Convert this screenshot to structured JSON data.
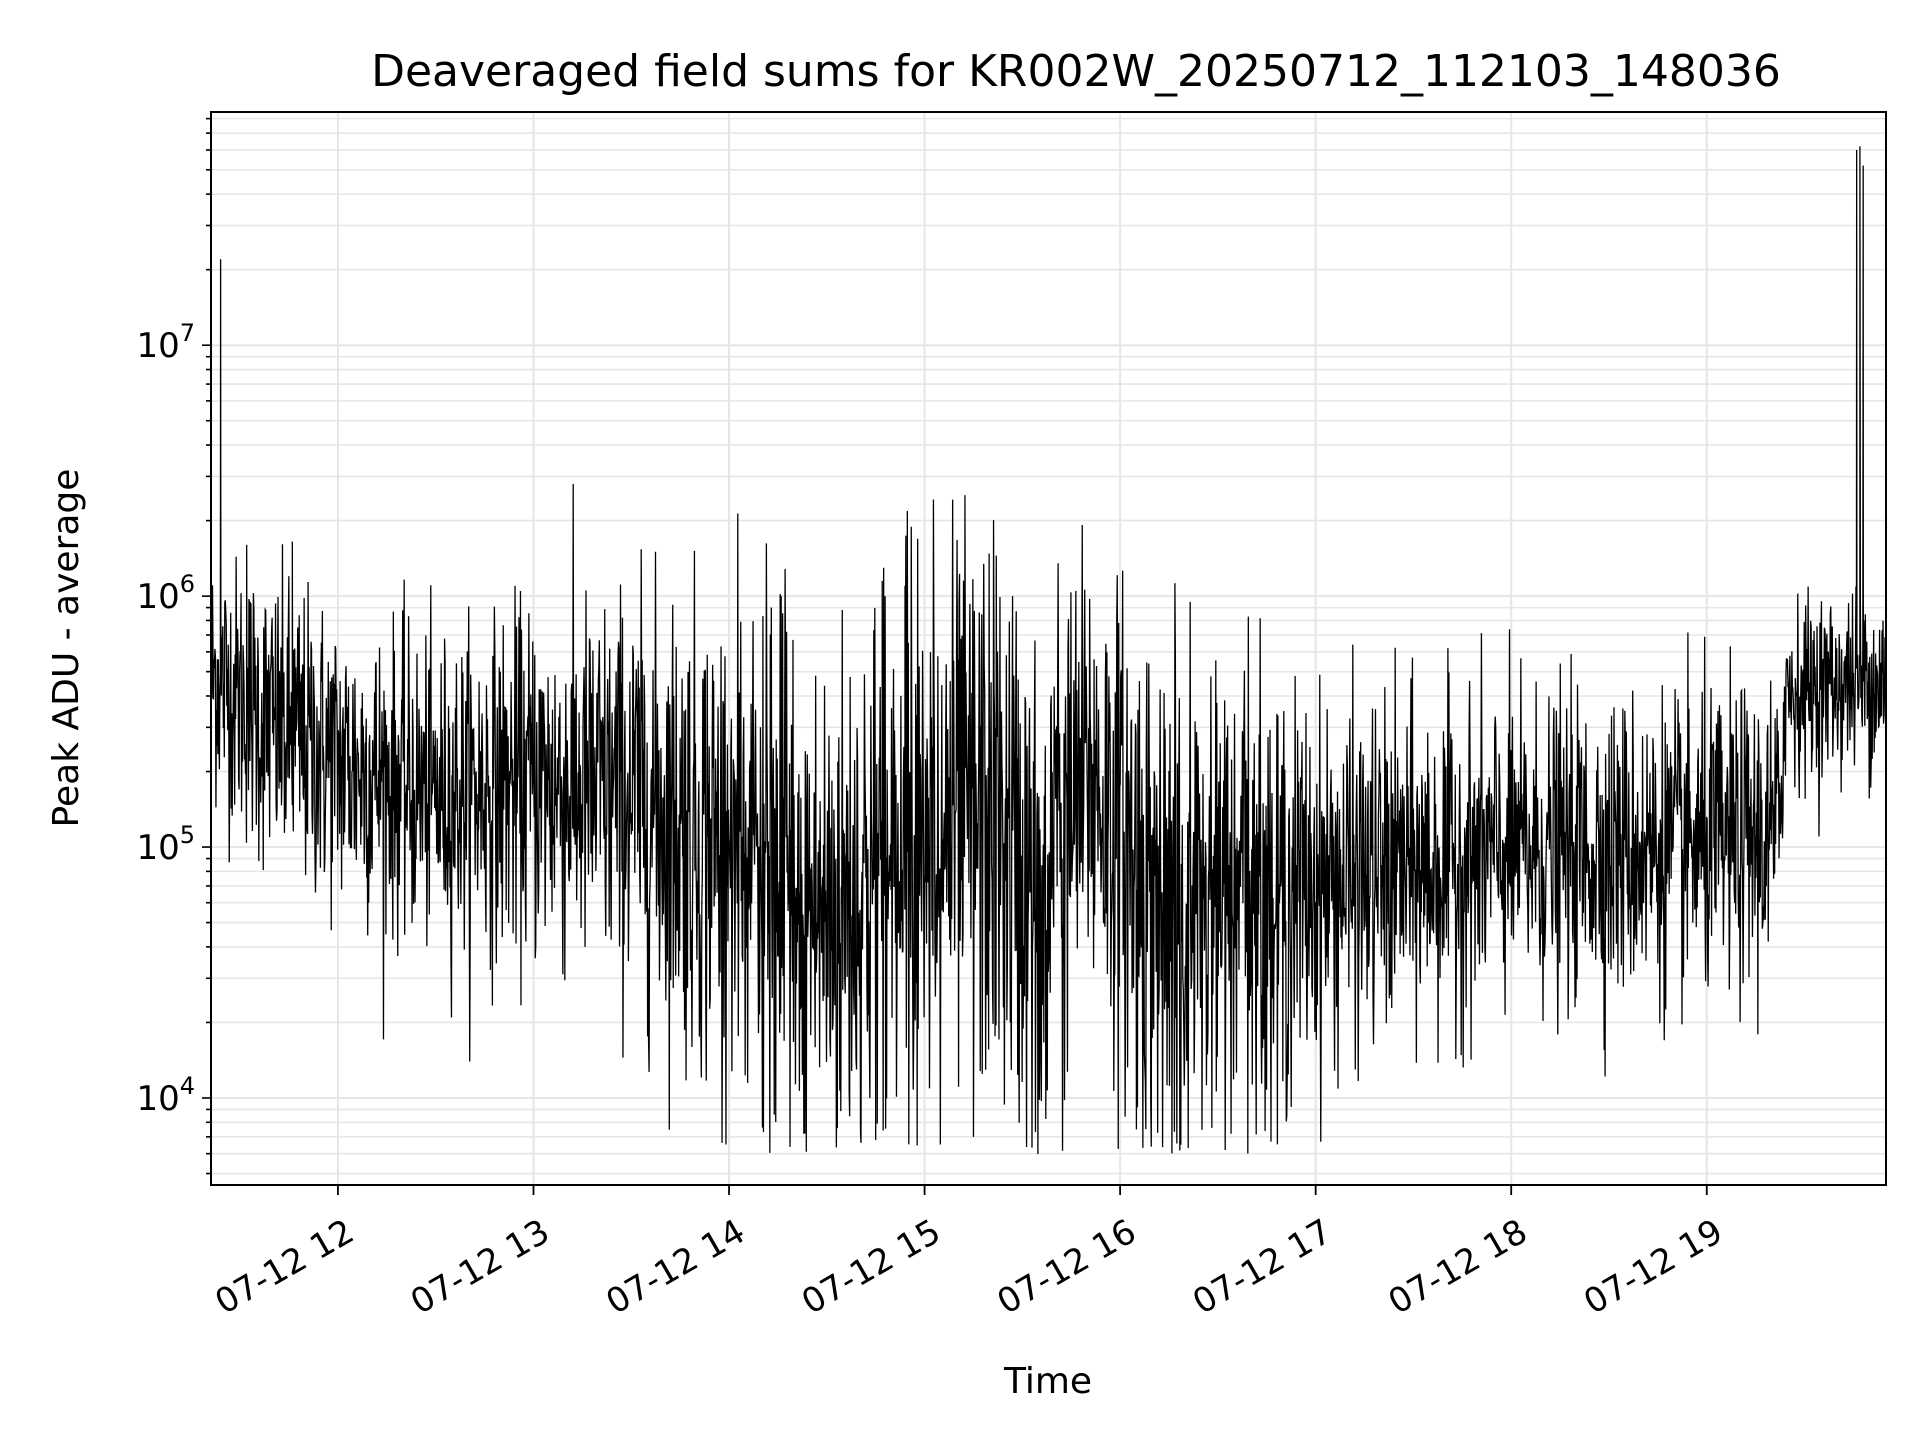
{
  "chart_data": {
    "type": "line",
    "title": "Deaveraged field sums for KR002W_20250712_112103_148036",
    "xlabel": "Time",
    "ylabel": "Peak ADU - average",
    "yscale": "log",
    "grid": true,
    "line_color": "#000000",
    "grid_color": "#e6e6e6",
    "xlim": [
      "2025-07-12T11:21:03",
      "2025-07-12T19:55:00"
    ],
    "ylim": [
      4500,
      85000000
    ],
    "x_ticks": [
      {
        "time": "2025-07-12T12:00:00",
        "label": "07-12 12"
      },
      {
        "time": "2025-07-12T13:00:00",
        "label": "07-12 13"
      },
      {
        "time": "2025-07-12T14:00:00",
        "label": "07-12 14"
      },
      {
        "time": "2025-07-12T15:00:00",
        "label": "07-12 15"
      },
      {
        "time": "2025-07-12T16:00:00",
        "label": "07-12 16"
      },
      {
        "time": "2025-07-12T17:00:00",
        "label": "07-12 17"
      },
      {
        "time": "2025-07-12T18:00:00",
        "label": "07-12 18"
      },
      {
        "time": "2025-07-12T19:00:00",
        "label": "07-12 19"
      }
    ],
    "y_ticks": [
      {
        "value": 10000,
        "base": "10",
        "exp": "4"
      },
      {
        "value": 100000,
        "base": "10",
        "exp": "5"
      },
      {
        "value": 1000000,
        "base": "10",
        "exp": "6"
      },
      {
        "value": 10000000,
        "base": "10",
        "exp": "7"
      }
    ],
    "series": [
      {
        "envelope": [
          {
            "time": "2025-07-12T11:21:03",
            "center": 500000,
            "spread": 0.25
          },
          {
            "time": "2025-07-12T11:40:00",
            "center": 300000,
            "spread": 0.3
          },
          {
            "time": "2025-07-12T12:00:00",
            "center": 220000,
            "spread": 0.3
          },
          {
            "time": "2025-07-12T12:30:00",
            "center": 160000,
            "spread": 0.3
          },
          {
            "time": "2025-07-12T13:00:00",
            "center": 180000,
            "spread": 0.35
          },
          {
            "time": "2025-07-12T13:30:00",
            "center": 160000,
            "spread": 0.4
          },
          {
            "time": "2025-07-12T14:00:00",
            "center": 100000,
            "spread": 0.5
          },
          {
            "time": "2025-07-12T14:30:00",
            "center": 50000,
            "spread": 0.55
          },
          {
            "time": "2025-07-12T14:55:00",
            "center": 120000,
            "spread": 0.55
          },
          {
            "time": "2025-07-12T15:20:00",
            "center": 130000,
            "spread": 0.55
          },
          {
            "time": "2025-07-12T15:35:00",
            "center": 60000,
            "spread": 0.5
          },
          {
            "time": "2025-07-12T15:50:00",
            "center": 200000,
            "spread": 0.45
          },
          {
            "time": "2025-07-12T16:15:00",
            "center": 50000,
            "spread": 0.55
          },
          {
            "time": "2025-07-12T16:45:00",
            "center": 60000,
            "spread": 0.45
          },
          {
            "time": "2025-07-12T17:00:00",
            "center": 70000,
            "spread": 0.35
          },
          {
            "time": "2025-07-12T18:00:00",
            "center": 95000,
            "spread": 0.3
          },
          {
            "time": "2025-07-12T19:00:00",
            "center": 100000,
            "spread": 0.3
          },
          {
            "time": "2025-07-12T19:22:00",
            "center": 110000,
            "spread": 0.3
          },
          {
            "time": "2025-07-12T19:24:00",
            "center": 420000,
            "spread": 0.18
          },
          {
            "time": "2025-07-12T19:55:00",
            "center": 470000,
            "spread": 0.18
          }
        ],
        "spikes": [
          {
            "time": "2025-07-12T11:24:00",
            "value": 22000000
          },
          {
            "time": "2025-07-12T11:32:00",
            "value": 1600000
          },
          {
            "time": "2025-07-12T11:46:00",
            "value": 1650000
          },
          {
            "time": "2025-07-12T14:16:00",
            "value": 1000000
          },
          {
            "time": "2025-07-12T14:47:00",
            "value": 1150000
          },
          {
            "time": "2025-07-12T14:54:00",
            "value": 1100000
          },
          {
            "time": "2025-07-12T15:22:00",
            "value": 1450000
          },
          {
            "time": "2025-07-12T15:27:00",
            "value": 1000000
          },
          {
            "time": "2025-07-12T14:45:00",
            "value": 6800
          },
          {
            "time": "2025-07-12T15:15:00",
            "value": 7000
          },
          {
            "time": "2025-07-12T16:05:00",
            "value": 7500
          },
          {
            "time": "2025-07-12T19:46:00",
            "value": 60000000
          },
          {
            "time": "2025-07-12T19:47:00",
            "value": 62000000
          },
          {
            "time": "2025-07-12T19:48:00",
            "value": 52000000
          }
        ]
      }
    ]
  }
}
